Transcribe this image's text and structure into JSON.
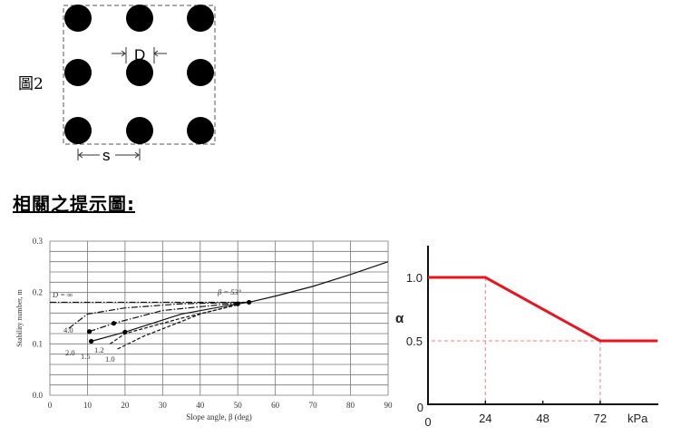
{
  "figure": {
    "label": "圖2",
    "diameter_label": "D",
    "spacing_label": "s",
    "grid": {
      "rows": 3,
      "cols": 3
    }
  },
  "heading": "相關之提示圖:",
  "chart_data": [
    {
      "type": "line",
      "xlabel": "Slope angle, β (deg)",
      "ylabel": "Stability number, m",
      "xlim": [
        0,
        90
      ],
      "ylim": [
        0.0,
        0.3
      ],
      "xticks": [
        "0",
        "10",
        "20",
        "30",
        "40",
        "50",
        "60",
        "70",
        "80",
        "90"
      ],
      "yticks": [
        "0.0",
        "0.1",
        "0.2",
        "0.3"
      ],
      "grid": true,
      "annotations": [
        "D = ∞",
        "β = 53°",
        "4.0",
        "2.0",
        "1.5",
        "1.2",
        "1.0"
      ],
      "series": [
        {
          "name": "D = ∞",
          "style": "dash-dot",
          "x": [
            0,
            53
          ],
          "y": [
            0.181,
            0.181
          ]
        },
        {
          "name": "4.0",
          "style": "dash-dot",
          "x": [
            5,
            10,
            20,
            35,
            53
          ],
          "y": [
            0.13,
            0.158,
            0.17,
            0.178,
            0.181
          ]
        },
        {
          "name": "2.0",
          "style": "dash-dot",
          "x": [
            10.5,
            17,
            30,
            45,
            53
          ],
          "y": [
            0.124,
            0.14,
            0.165,
            0.176,
            0.181
          ]
        },
        {
          "name": "1.5",
          "style": "solid",
          "x": [
            11,
            20,
            35,
            50,
            53
          ],
          "y": [
            0.105,
            0.123,
            0.158,
            0.178,
            0.181
          ]
        },
        {
          "name": "1.2",
          "style": "dash",
          "x": [
            16,
            20,
            35,
            50
          ],
          "y": [
            0.1,
            0.12,
            0.15,
            0.176
          ]
        },
        {
          "name": "1.0",
          "style": "dash",
          "x": [
            18,
            25,
            40,
            50
          ],
          "y": [
            0.09,
            0.115,
            0.158,
            0.177
          ]
        },
        {
          "name": "",
          "style": "solid",
          "x": [
            53,
            60,
            70,
            80,
            90
          ],
          "y": [
            0.181,
            0.193,
            0.212,
            0.235,
            0.26
          ]
        }
      ],
      "points": [
        {
          "x": 10.5,
          "y": 0.124
        },
        {
          "x": 11,
          "y": 0.105
        },
        {
          "x": 17,
          "y": 0.14
        },
        {
          "x": 20,
          "y": 0.123
        },
        {
          "x": 50,
          "y": 0.178
        },
        {
          "x": 53,
          "y": 0.181
        }
      ]
    },
    {
      "type": "line",
      "ylabel": "α",
      "xlabel": "kPa",
      "xticks": [
        "0",
        "24",
        "48",
        "72"
      ],
      "yticks": [
        "0",
        "0.5",
        "1.0"
      ],
      "xlim": [
        0,
        96
      ],
      "ylim": [
        0,
        1.25
      ],
      "color": "#e8141e",
      "guide_color": "#f28080",
      "series": [
        {
          "x": [
            0,
            24,
            72,
            96
          ],
          "y": [
            1.0,
            1.0,
            0.5,
            0.5
          ]
        }
      ],
      "guides": [
        {
          "x": 24
        },
        {
          "x": 72
        },
        {
          "y": 0.5
        }
      ]
    }
  ]
}
